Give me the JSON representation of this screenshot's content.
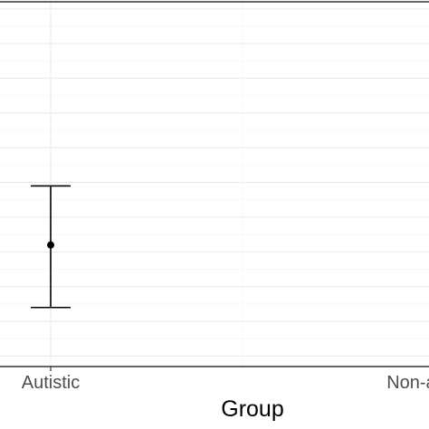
{
  "chart_data": {
    "type": "scatter",
    "title": "",
    "xlabel": "Group",
    "ylabel": "",
    "categories": [
      "Autistic",
      "Non-autistic"
    ],
    "series": [
      {
        "values": [
          0.62,
          null
        ],
        "error_low": [
          0.44,
          null
        ],
        "error_high": [
          0.79,
          null
        ]
      }
    ],
    "ylim": [
      0.27,
      1.32
    ],
    "grid": true,
    "legend": "none",
    "colors": {
      "panel_background": "#ffffff",
      "grid_major": "#ebebeb",
      "grid_minor": "#f5f5f5",
      "axis_line": "#333333",
      "mark": "#000000",
      "tick_text": "#4d4d4d",
      "title_text": "#000000"
    }
  }
}
